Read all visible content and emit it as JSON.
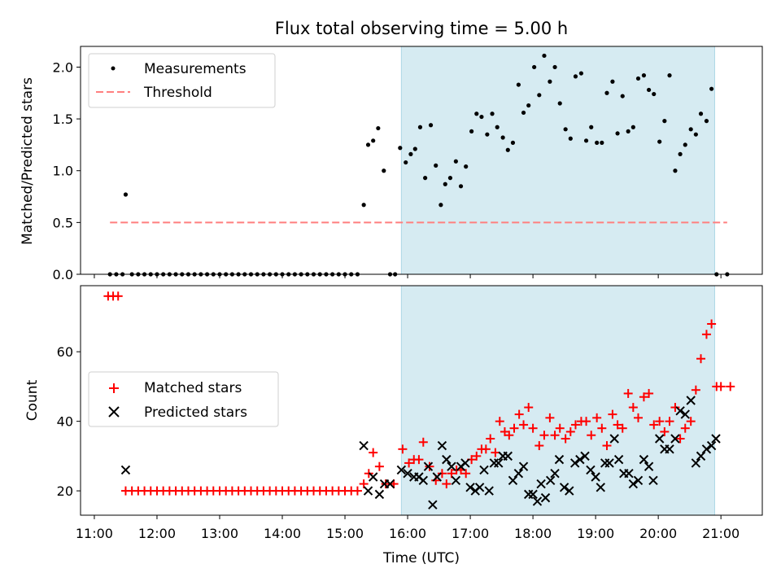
{
  "colors": {
    "background": "#ffffff",
    "span": "#add8e6",
    "measurement": "#000000",
    "threshold": "#ff7f7f",
    "matched": "#ff0000",
    "predicted": "#000000"
  },
  "chart_data": [
    {
      "type": "scatter",
      "title": "Flux total observing time = 5.00 h",
      "xlabel": "",
      "ylabel": "Matched/Predicted stars",
      "xlim": [
        10.78,
        21.66
      ],
      "ylim": [
        0,
        2.2
      ],
      "yticks": [
        0.0,
        0.5,
        1.0,
        1.5,
        2.0
      ],
      "ytick_labels": [
        "0.0",
        "0.5",
        "1.0",
        "1.5",
        "2.0"
      ],
      "x_unit": "hours (UTC)",
      "highlight_span": [
        15.9,
        20.9
      ],
      "legend": {
        "placement": "top-left",
        "entries": [
          "Measurements",
          "Threshold"
        ]
      },
      "threshold": {
        "name": "Threshold",
        "value": 0.5,
        "x_range": [
          11.25,
          21.1
        ]
      },
      "series": [
        {
          "name": "Measurements",
          "marker": "dot",
          "x": [
            11.25,
            11.35,
            11.45,
            11.5,
            11.6,
            11.7,
            11.8,
            11.9,
            12.0,
            12.1,
            12.2,
            12.3,
            12.4,
            12.5,
            12.6,
            12.7,
            12.8,
            12.9,
            13.0,
            13.1,
            13.2,
            13.3,
            13.4,
            13.5,
            13.6,
            13.7,
            13.8,
            13.9,
            14.0,
            14.1,
            14.2,
            14.3,
            14.4,
            14.5,
            14.6,
            14.7,
            14.8,
            14.9,
            15.0,
            15.1,
            15.2,
            15.3,
            15.37,
            15.45,
            15.53,
            15.62,
            15.72,
            15.8,
            15.88,
            15.97,
            16.05,
            16.12,
            16.2,
            16.28,
            16.37,
            16.45,
            16.53,
            16.6,
            16.68,
            16.77,
            16.85,
            16.93,
            17.02,
            17.1,
            17.18,
            17.27,
            17.35,
            17.43,
            17.52,
            17.6,
            17.68,
            17.77,
            17.85,
            17.93,
            18.02,
            18.1,
            18.18,
            18.27,
            18.35,
            18.43,
            18.52,
            18.6,
            18.68,
            18.77,
            18.85,
            18.93,
            19.02,
            19.1,
            19.18,
            19.27,
            19.35,
            19.43,
            19.52,
            19.6,
            19.68,
            19.77,
            19.85,
            19.93,
            20.02,
            20.1,
            20.18,
            20.27,
            20.35,
            20.43,
            20.52,
            20.6,
            20.68,
            20.77,
            20.85,
            20.93,
            21.1
          ],
          "y": [
            0.0,
            0.0,
            0.0,
            0.77,
            0.0,
            0.0,
            0.0,
            0.0,
            0.0,
            0.0,
            0.0,
            0.0,
            0.0,
            0.0,
            0.0,
            0.0,
            0.0,
            0.0,
            0.0,
            0.0,
            0.0,
            0.0,
            0.0,
            0.0,
            0.0,
            0.0,
            0.0,
            0.0,
            0.0,
            0.0,
            0.0,
            0.0,
            0.0,
            0.0,
            0.0,
            0.0,
            0.0,
            0.0,
            0.0,
            0.0,
            0.0,
            0.67,
            1.25,
            1.29,
            1.41,
            1.0,
            0.0,
            0.0,
            1.22,
            1.08,
            1.16,
            1.21,
            1.42,
            0.93,
            1.44,
            1.05,
            0.67,
            0.87,
            0.93,
            1.09,
            0.85,
            1.04,
            1.38,
            1.55,
            1.52,
            1.35,
            1.55,
            1.42,
            1.32,
            1.2,
            1.27,
            1.83,
            1.56,
            1.63,
            2.0,
            1.73,
            2.11,
            1.86,
            2.0,
            1.65,
            1.4,
            1.31,
            1.91,
            1.94,
            1.29,
            1.42,
            1.27,
            1.27,
            1.75,
            1.86,
            1.36,
            1.72,
            1.38,
            1.42,
            1.89,
            1.92,
            1.78,
            1.74,
            1.28,
            1.48,
            1.92,
            1.0,
            1.16,
            1.25,
            1.4,
            1.35,
            1.55,
            1.48,
            1.79,
            0.0,
            0.0
          ]
        }
      ]
    },
    {
      "type": "scatter",
      "title": "",
      "xlabel": "Time (UTC)",
      "ylabel": "Count",
      "xlim": [
        10.78,
        21.66
      ],
      "ylim": [
        13.0,
        79.0
      ],
      "yticks": [
        20,
        40,
        60
      ],
      "ytick_labels": [
        "20",
        "40",
        "60"
      ],
      "x_unit": "hours (UTC)",
      "xticks": [
        11,
        12,
        13,
        14,
        15,
        16,
        17,
        18,
        19,
        20,
        21
      ],
      "xtick_labels": [
        "11:00",
        "12:00",
        "13:00",
        "14:00",
        "15:00",
        "16:00",
        "17:00",
        "18:00",
        "19:00",
        "20:00",
        "21:00"
      ],
      "highlight_span": [
        15.9,
        20.9
      ],
      "legend": {
        "placement": "center-left",
        "entries": [
          "Matched stars",
          "Predicted stars"
        ]
      },
      "series": [
        {
          "name": "Matched stars",
          "marker": "plus",
          "x": [
            11.22,
            11.3,
            11.38,
            11.5,
            11.6,
            11.7,
            11.8,
            11.9,
            12.0,
            12.1,
            12.2,
            12.3,
            12.4,
            12.5,
            12.6,
            12.7,
            12.8,
            12.9,
            13.0,
            13.1,
            13.2,
            13.3,
            13.4,
            13.5,
            13.6,
            13.7,
            13.8,
            13.9,
            14.0,
            14.1,
            14.2,
            14.3,
            14.4,
            14.5,
            14.6,
            14.7,
            14.8,
            14.9,
            15.0,
            15.1,
            15.2,
            15.3,
            15.38,
            15.45,
            15.55,
            15.65,
            15.78,
            15.92,
            16.02,
            16.1,
            16.18,
            16.25,
            16.35,
            16.45,
            16.55,
            16.62,
            16.7,
            16.78,
            16.85,
            16.93,
            17.02,
            17.1,
            17.18,
            17.25,
            17.32,
            17.4,
            17.47,
            17.55,
            17.62,
            17.7,
            17.78,
            17.85,
            17.93,
            18.0,
            18.1,
            18.18,
            18.27,
            18.35,
            18.43,
            18.52,
            18.6,
            18.68,
            18.77,
            18.85,
            18.93,
            19.02,
            19.1,
            19.18,
            19.27,
            19.35,
            19.43,
            19.52,
            19.6,
            19.68,
            19.77,
            19.85,
            19.93,
            20.02,
            20.1,
            20.18,
            20.27,
            20.35,
            20.43,
            20.52,
            20.6,
            20.68,
            20.77,
            20.85,
            20.93,
            21.0,
            21.15
          ],
          "y": [
            76,
            76,
            76,
            20,
            20,
            20,
            20,
            20,
            20,
            20,
            20,
            20,
            20,
            20,
            20,
            20,
            20,
            20,
            20,
            20,
            20,
            20,
            20,
            20,
            20,
            20,
            20,
            20,
            20,
            20,
            20,
            20,
            20,
            20,
            20,
            20,
            20,
            20,
            20,
            20,
            20,
            22,
            25,
            31,
            27,
            22,
            22,
            32,
            28,
            29,
            29,
            34,
            27,
            23,
            25,
            22,
            25,
            26,
            26,
            25,
            29,
            30,
            32,
            32,
            35,
            31,
            40,
            37,
            36,
            38,
            42,
            39,
            44,
            38,
            33,
            36,
            41,
            36,
            38,
            35,
            37,
            39,
            40,
            40,
            36,
            41,
            38,
            33,
            42,
            39,
            38,
            48,
            44,
            41,
            47,
            48,
            39,
            40,
            37,
            40,
            44,
            35,
            38,
            40,
            49,
            58,
            65,
            68,
            50,
            50,
            50
          ]
        },
        {
          "name": "Predicted stars",
          "marker": "x",
          "x": [
            11.5,
            15.3,
            15.37,
            15.45,
            15.55,
            15.63,
            15.72,
            15.9,
            16.0,
            16.1,
            16.18,
            16.25,
            16.33,
            16.4,
            16.47,
            16.55,
            16.62,
            16.7,
            16.77,
            16.85,
            16.92,
            17.0,
            17.08,
            17.15,
            17.22,
            17.3,
            17.38,
            17.45,
            17.52,
            17.6,
            17.68,
            17.77,
            17.85,
            17.93,
            18.0,
            18.07,
            18.13,
            18.2,
            18.28,
            18.35,
            18.42,
            18.5,
            18.58,
            18.67,
            18.75,
            18.83,
            18.92,
            19.0,
            19.08,
            19.15,
            19.22,
            19.3,
            19.37,
            19.45,
            19.53,
            19.6,
            19.68,
            19.77,
            19.85,
            19.92,
            20.02,
            20.1,
            20.18,
            20.27,
            20.35,
            20.43,
            20.52,
            20.6,
            20.68,
            20.77,
            20.85,
            20.92
          ],
          "y": [
            26,
            33,
            20,
            24,
            19,
            22,
            22,
            26,
            25,
            24,
            24,
            23,
            27,
            16,
            24,
            33,
            29,
            27,
            23,
            27,
            28,
            21,
            20,
            21,
            26,
            20,
            28,
            28,
            30,
            30,
            23,
            25,
            27,
            19,
            19,
            17,
            22,
            18,
            23,
            25,
            29,
            21,
            20,
            28,
            29,
            30,
            26,
            24,
            21,
            28,
            28,
            35,
            29,
            25,
            25,
            22,
            23,
            29,
            27,
            23,
            35,
            32,
            32,
            35,
            43,
            42,
            46,
            28,
            30,
            32,
            33,
            35
          ]
        }
      ]
    }
  ]
}
